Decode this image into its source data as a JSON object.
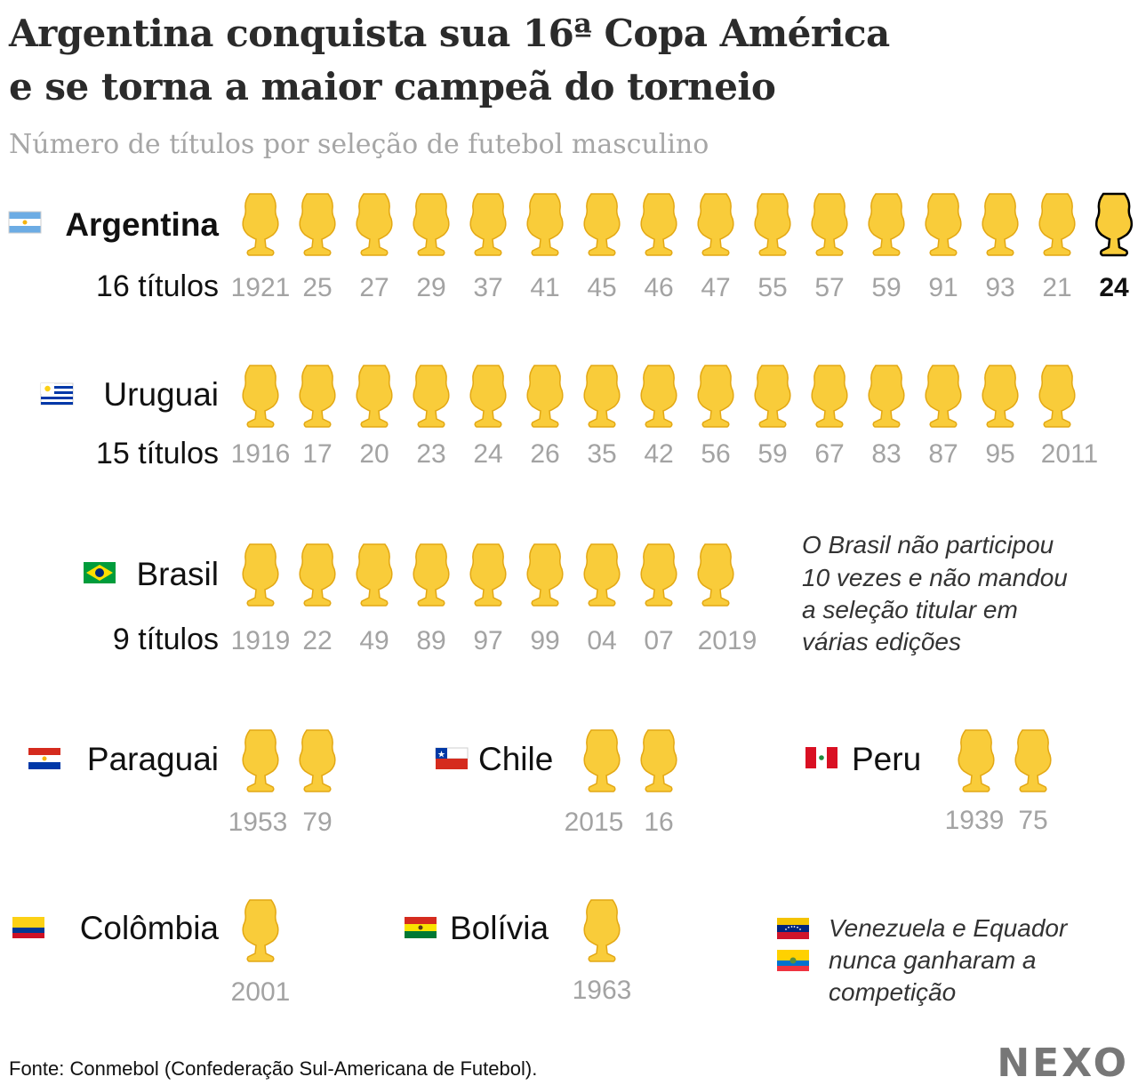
{
  "title_line1": "Argentina conquista sua 16ª Copa América",
  "title_line2": "e se torna a maior campeã do torneio",
  "subtitle": "Número de títulos por seleção de futebol masculino",
  "source": "Fonte: Conmebol (Confederação Sul-Americana de Futebol).",
  "logo": "NEXO",
  "brasil_note": [
    "O Brasil não participou",
    "10 vezes e não mandou",
    "a seleção titular em",
    "várias edições"
  ],
  "never_won_note": [
    "Venezuela e Equador",
    "nunca ganharam a",
    "competição"
  ],
  "colors": {
    "trophy_fill": "#f9cc3a",
    "trophy_outline": "#e3a814",
    "trophy_highlight_outline": "#000000",
    "year_label": "#a3a3a3",
    "year_highlight": "#111111"
  },
  "chart_data": {
    "type": "pictogram",
    "unit": "títulos",
    "highlight": {
      "country": "Argentina",
      "year": "24"
    },
    "series": [
      {
        "country": "Argentina",
        "flag": "argentina-flag",
        "count_label": "16 títulos",
        "value": 16,
        "years": [
          "1921",
          "25",
          "27",
          "29",
          "37",
          "41",
          "45",
          "46",
          "47",
          "55",
          "57",
          "59",
          "91",
          "93",
          "21",
          "24"
        ]
      },
      {
        "country": "Uruguai",
        "flag": "uruguay-flag",
        "count_label": "15 títulos",
        "value": 15,
        "years": [
          "1916",
          "17",
          "20",
          "23",
          "24",
          "26",
          "35",
          "42",
          "56",
          "59",
          "67",
          "83",
          "87",
          "95",
          "2011"
        ]
      },
      {
        "country": "Brasil",
        "flag": "brazil-flag",
        "count_label": "9 títulos",
        "value": 9,
        "years": [
          "1919",
          "22",
          "49",
          "89",
          "97",
          "99",
          "04",
          "07",
          "2019"
        ]
      },
      {
        "country": "Paraguai",
        "flag": "paraguay-flag",
        "value": 2,
        "years": [
          "1953",
          "79"
        ]
      },
      {
        "country": "Chile",
        "flag": "chile-flag",
        "value": 2,
        "years": [
          "2015",
          "16"
        ]
      },
      {
        "country": "Peru",
        "flag": "peru-flag",
        "value": 2,
        "years": [
          "1939",
          "75"
        ]
      },
      {
        "country": "Colômbia",
        "flag": "colombia-flag",
        "value": 1,
        "years": [
          "2001"
        ]
      },
      {
        "country": "Bolívia",
        "flag": "bolivia-flag",
        "value": 1,
        "years": [
          "1963"
        ]
      },
      {
        "country": "Venezuela",
        "flag": "venezuela-flag",
        "value": 0,
        "years": []
      },
      {
        "country": "Equador",
        "flag": "ecuador-flag",
        "value": 0,
        "years": []
      }
    ]
  }
}
